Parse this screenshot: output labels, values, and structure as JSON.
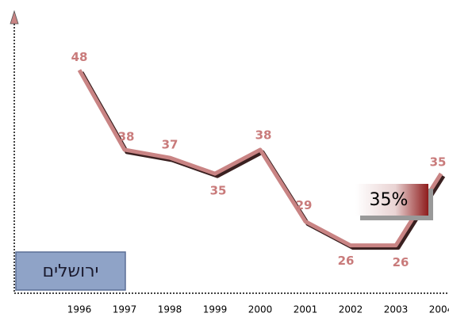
{
  "chart_data": {
    "type": "line",
    "categories": [
      "1996",
      "1997",
      "1998",
      "1999",
      "2000",
      "2001",
      "2002",
      "2003",
      "2004"
    ],
    "series": [
      {
        "name": "ירושלים",
        "color": "#c98484",
        "values": [
          48,
          38,
          37,
          35,
          38,
          29,
          26,
          26,
          35
        ]
      }
    ],
    "ylim": [
      20,
      55
    ],
    "annotations": [
      "35%"
    ]
  }
}
